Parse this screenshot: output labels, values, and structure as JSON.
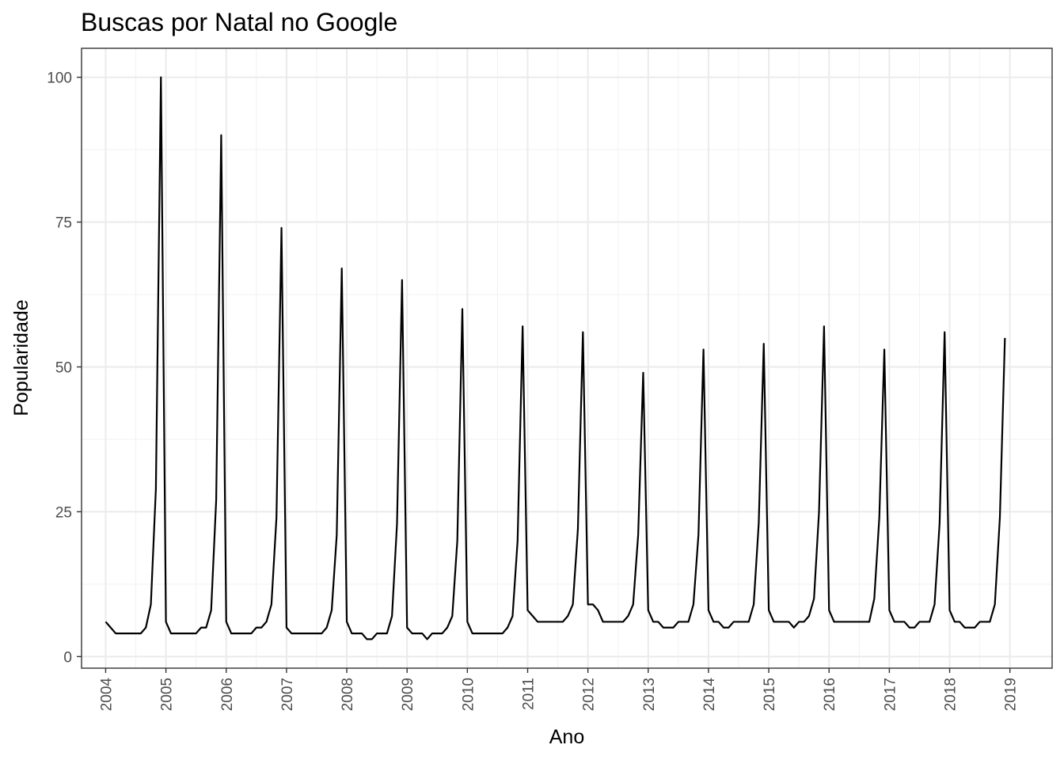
{
  "chart_data": {
    "type": "line",
    "title": "Buscas por Natal no Google",
    "xlabel": "Ano",
    "ylabel": "Popularidade",
    "xlim": [
      2003.6,
      2019.7
    ],
    "ylim": [
      -2,
      105
    ],
    "x_ticks": [
      2004,
      2005,
      2006,
      2007,
      2008,
      2009,
      2010,
      2011,
      2012,
      2013,
      2014,
      2015,
      2016,
      2017,
      2018,
      2019
    ],
    "y_ticks": [
      0,
      25,
      50,
      75,
      100
    ],
    "grid": true,
    "legend": "none",
    "x_start": "2004-01",
    "frequency": "monthly",
    "values": [
      6,
      5,
      4,
      4,
      4,
      4,
      4,
      4,
      5,
      9,
      29,
      100,
      6,
      4,
      4,
      4,
      4,
      4,
      4,
      5,
      5,
      8,
      27,
      90,
      6,
      4,
      4,
      4,
      4,
      4,
      5,
      5,
      6,
      9,
      24,
      74,
      5,
      4,
      4,
      4,
      4,
      4,
      4,
      4,
      5,
      8,
      21,
      67,
      6,
      4,
      4,
      4,
      3,
      3,
      4,
      4,
      4,
      7,
      23,
      65,
      5,
      4,
      4,
      4,
      3,
      4,
      4,
      4,
      5,
      7,
      20,
      60,
      6,
      4,
      4,
      4,
      4,
      4,
      4,
      4,
      5,
      7,
      20,
      57,
      8,
      7,
      6,
      6,
      6,
      6,
      6,
      6,
      7,
      9,
      22,
      56,
      9,
      9,
      8,
      6,
      6,
      6,
      6,
      6,
      7,
      9,
      21,
      49,
      8,
      6,
      6,
      5,
      5,
      5,
      6,
      6,
      6,
      9,
      21,
      53,
      8,
      6,
      6,
      5,
      5,
      6,
      6,
      6,
      6,
      9,
      23,
      54,
      8,
      6,
      6,
      6,
      6,
      5,
      6,
      6,
      7,
      10,
      25,
      57,
      8,
      6,
      6,
      6,
      6,
      6,
      6,
      6,
      6,
      10,
      24,
      53,
      8,
      6,
      6,
      6,
      5,
      5,
      6,
      6,
      6,
      9,
      23,
      56,
      8,
      6,
      6,
      5,
      5,
      5,
      6,
      6,
      6,
      9,
      24,
      55
    ]
  }
}
